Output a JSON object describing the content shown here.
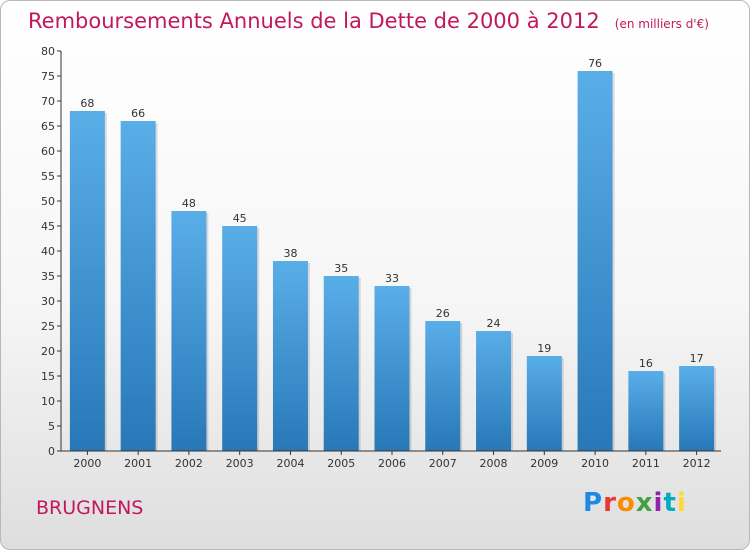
{
  "title": "Remboursements Annuels de la Dette de 2000 à 2012",
  "subtitle": "(en milliers d'€)",
  "commune": "BRUGNENS",
  "brand": {
    "text": "Proxiti",
    "colors": [
      "#1e88e5",
      "#e53935",
      "#fb8c00",
      "#43a047",
      "#8e24aa",
      "#00acc1",
      "#fdd835"
    ]
  },
  "colors": {
    "bar_top": "#5aaee8",
    "bar_bottom": "#2878b8",
    "title": "#c2185b"
  },
  "chart_data": {
    "type": "bar",
    "categories": [
      "2000",
      "2001",
      "2002",
      "2003",
      "2004",
      "2005",
      "2006",
      "2007",
      "2008",
      "2009",
      "2010",
      "2011",
      "2012"
    ],
    "values": [
      68,
      66,
      48,
      45,
      38,
      35,
      33,
      26,
      24,
      19,
      76,
      16,
      17
    ],
    "ylim": [
      0,
      80
    ],
    "yticks": [
      0,
      5,
      10,
      15,
      20,
      25,
      30,
      35,
      40,
      45,
      50,
      55,
      60,
      65,
      70,
      75,
      80
    ],
    "grid": false,
    "data_labels": true
  }
}
